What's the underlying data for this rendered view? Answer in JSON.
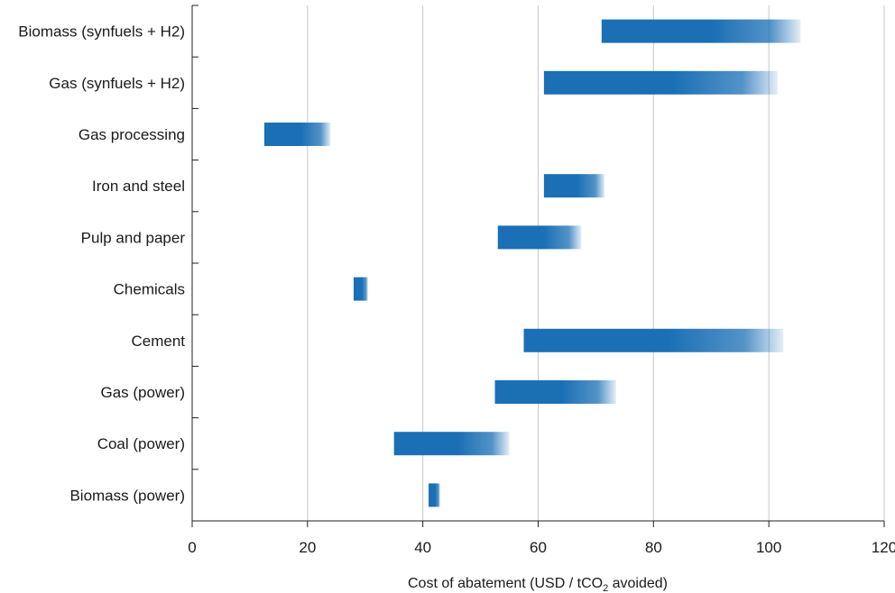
{
  "chart_data": {
    "type": "bar",
    "orientation": "horizontal-range",
    "categories": [
      "Biomass (synfuels + H2)",
      "Gas (synfuels + H2)",
      "Gas processing",
      "Iron and steel",
      "Pulp and paper",
      "Chemicals",
      "Cement",
      "Gas (power)",
      "Coal (power)",
      "Biomass (power)"
    ],
    "ranges": [
      [
        71,
        105.5
      ],
      [
        61,
        101.5
      ],
      [
        12.5,
        24
      ],
      [
        61,
        71.5
      ],
      [
        53,
        67.5
      ],
      [
        28,
        30.5
      ],
      [
        57.5,
        102.5
      ],
      [
        52.5,
        73.5
      ],
      [
        35,
        55
      ],
      [
        41,
        43
      ]
    ],
    "xlim": [
      0,
      120
    ],
    "xticks": [
      "0",
      "20",
      "40",
      "60",
      "80",
      "100",
      "120"
    ],
    "xlabel": {
      "prefix": "Cost of abatement (USD / tCO",
      "subscript": "2",
      "suffix": " avoided)"
    },
    "grid": "vertical",
    "bar_color": "#1a6fb5"
  }
}
